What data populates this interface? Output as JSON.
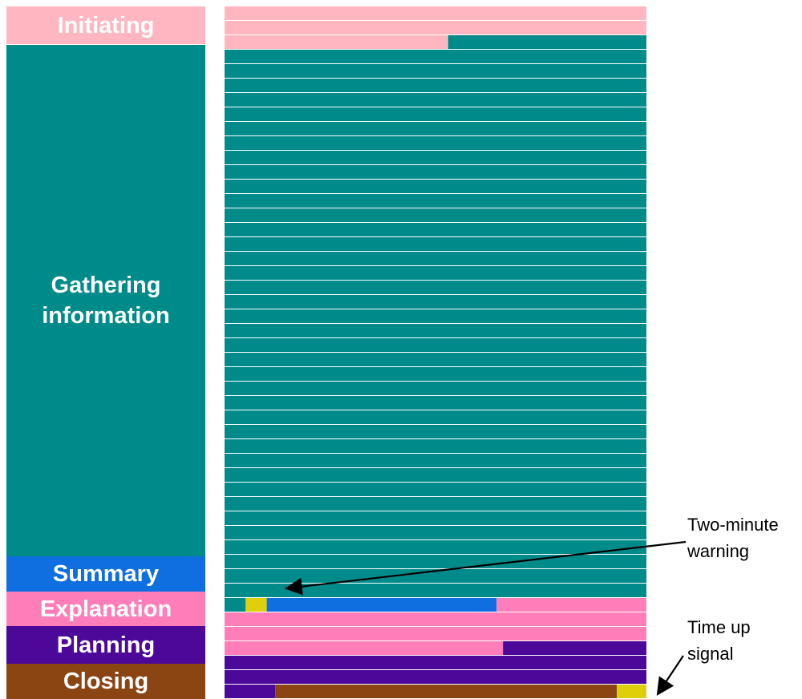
{
  "phases": [
    {
      "key": "initiating",
      "label": "Initiating",
      "color": "#FFB6C1"
    },
    {
      "key": "gathering",
      "label": "Gathering information",
      "color": "#008B8B"
    },
    {
      "key": "summary",
      "label": "Summary",
      "color": "#0F6FE0"
    },
    {
      "key": "explanation",
      "label": "Explanation",
      "color": "#FF7EB9"
    },
    {
      "key": "planning",
      "label": "Planning",
      "color": "#4B0899"
    },
    {
      "key": "closing",
      "label": "Closing",
      "color": "#8B4513"
    }
  ],
  "special_colors": {
    "warning": "#DDD00A",
    "separator": "#ffffff"
  },
  "timeline_rows": [
    [
      [
        "initiating",
        1
      ]
    ],
    [
      [
        "initiating",
        1
      ]
    ],
    [
      [
        "initiating",
        0.53
      ],
      [
        "gathering",
        0.47
      ]
    ],
    [
      [
        "gathering",
        1
      ]
    ],
    [
      [
        "gathering",
        1
      ]
    ],
    [
      [
        "gathering",
        1
      ]
    ],
    [
      [
        "gathering",
        1
      ]
    ],
    [
      [
        "gathering",
        1
      ]
    ],
    [
      [
        "gathering",
        1
      ]
    ],
    [
      [
        "gathering",
        1
      ]
    ],
    [
      [
        "gathering",
        1
      ]
    ],
    [
      [
        "gathering",
        1
      ]
    ],
    [
      [
        "gathering",
        1
      ]
    ],
    [
      [
        "gathering",
        1
      ]
    ],
    [
      [
        "gathering",
        1
      ]
    ],
    [
      [
        "gathering",
        1
      ]
    ],
    [
      [
        "gathering",
        1
      ]
    ],
    [
      [
        "gathering",
        1
      ]
    ],
    [
      [
        "gathering",
        1
      ]
    ],
    [
      [
        "gathering",
        1
      ]
    ],
    [
      [
        "gathering",
        1
      ]
    ],
    [
      [
        "gathering",
        1
      ]
    ],
    [
      [
        "gathering",
        1
      ]
    ],
    [
      [
        "gathering",
        1
      ]
    ],
    [
      [
        "gathering",
        1
      ]
    ],
    [
      [
        "gathering",
        1
      ]
    ],
    [
      [
        "gathering",
        1
      ]
    ],
    [
      [
        "gathering",
        1
      ]
    ],
    [
      [
        "gathering",
        1
      ]
    ],
    [
      [
        "gathering",
        1
      ]
    ],
    [
      [
        "gathering",
        1
      ]
    ],
    [
      [
        "gathering",
        1
      ]
    ],
    [
      [
        "gathering",
        1
      ]
    ],
    [
      [
        "gathering",
        1
      ]
    ],
    [
      [
        "gathering",
        1
      ]
    ],
    [
      [
        "gathering",
        1
      ]
    ],
    [
      [
        "gathering",
        1
      ]
    ],
    [
      [
        "gathering",
        1
      ]
    ],
    [
      [
        "gathering",
        1
      ]
    ],
    [
      [
        "gathering",
        1
      ]
    ],
    [
      [
        "gathering",
        1
      ]
    ],
    [
      [
        "gathering",
        0.05
      ],
      [
        "warning",
        0.05
      ],
      [
        "summary",
        0.545
      ],
      [
        "explanation",
        0.355
      ]
    ],
    [
      [
        "explanation",
        1
      ]
    ],
    [
      [
        "explanation",
        1
      ]
    ],
    [
      [
        "explanation",
        0.66
      ],
      [
        "planning",
        0.34
      ]
    ],
    [
      [
        "planning",
        1
      ]
    ],
    [
      [
        "planning",
        1
      ]
    ],
    [
      [
        "planning",
        0.12
      ],
      [
        "closing",
        0.81
      ],
      [
        "warning",
        0.07
      ]
    ]
  ],
  "annotations": {
    "two_minute_warning": {
      "line1": "Two-minute",
      "line2": "warning"
    },
    "time_up_signal": {
      "line1": "Time up",
      "line2": "signal"
    }
  }
}
